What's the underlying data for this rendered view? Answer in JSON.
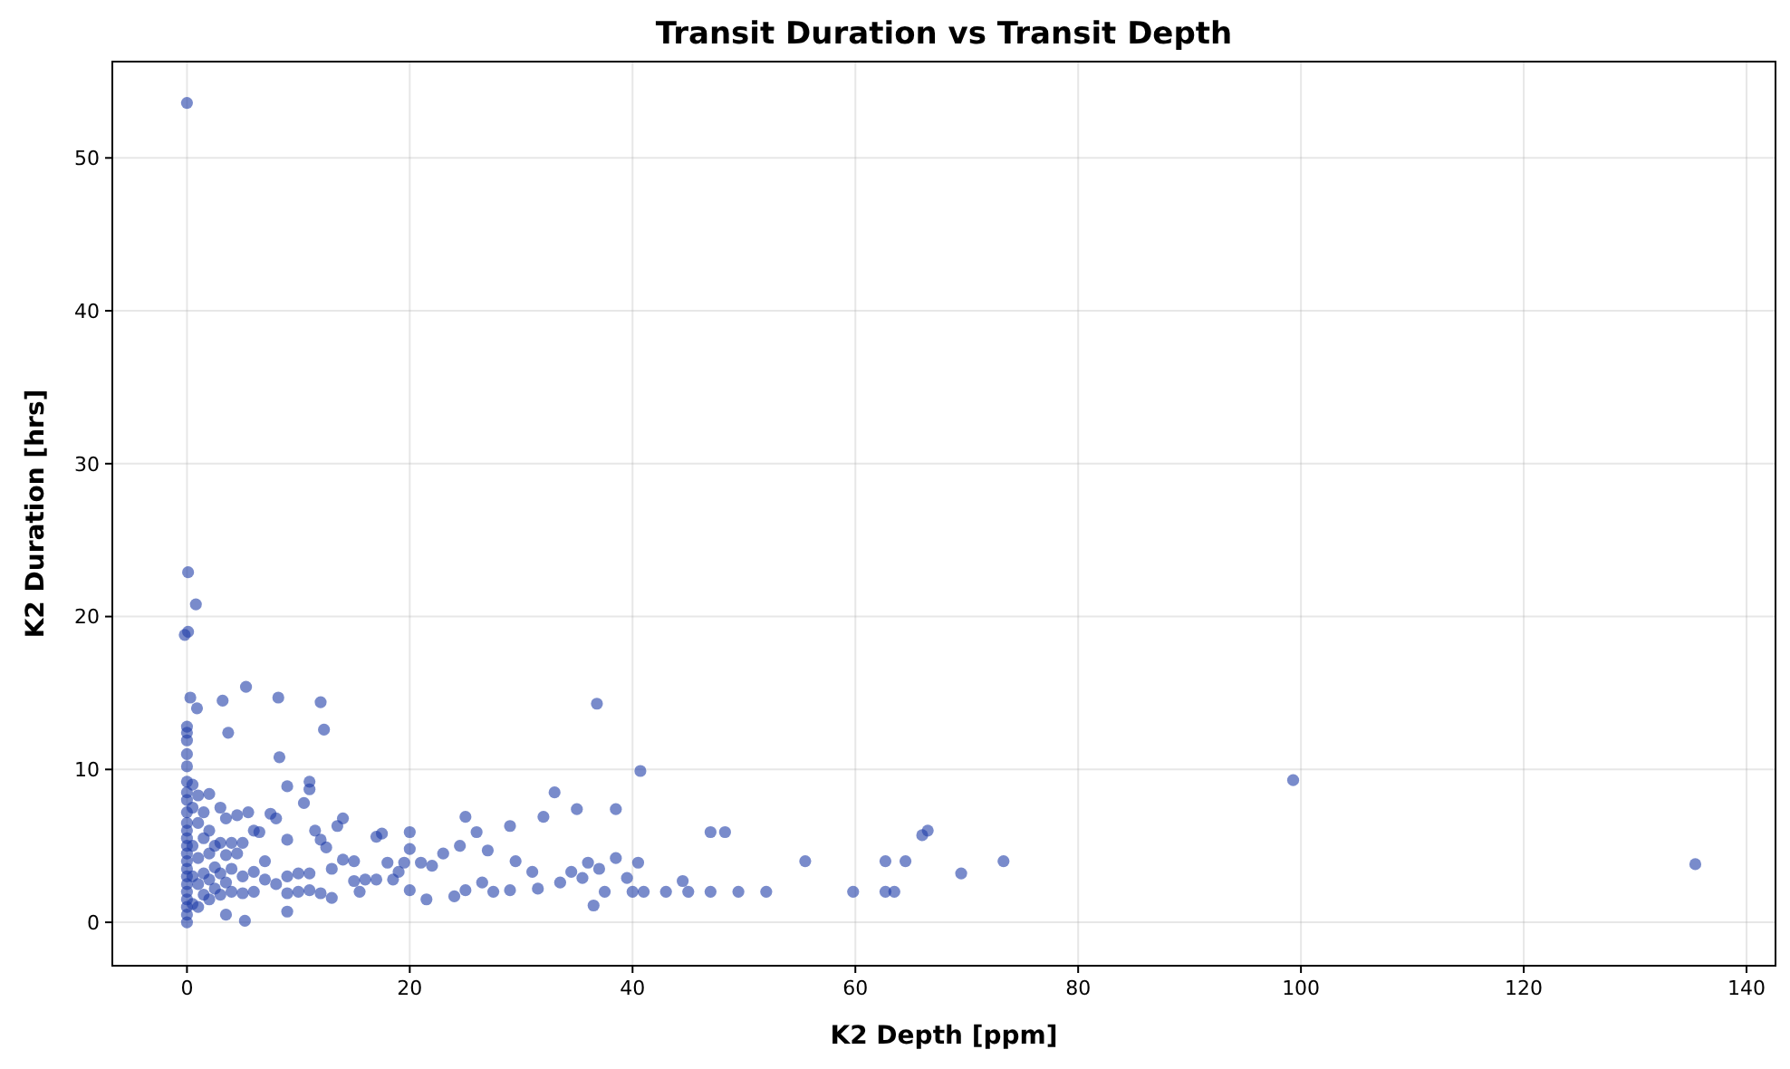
{
  "chart_data": {
    "type": "scatter",
    "title": "Transit Duration vs Transit Depth",
    "xlabel": "K2 Depth [ppm]",
    "ylabel": "K2 Duration [hrs]",
    "xlim": [
      -6.7,
      142.6
    ],
    "ylim": [
      -2.84,
      56.3
    ],
    "xticks": [
      0,
      20,
      40,
      60,
      80,
      100,
      120,
      140
    ],
    "yticks": [
      0,
      10,
      20,
      30,
      40,
      50
    ],
    "grid": true,
    "marker": "circle",
    "series": [
      {
        "color": "#1f3ea8",
        "x": [
          0,
          0.1,
          0.8,
          0.1,
          -0.2,
          0.3,
          0.9,
          3.2,
          5.3,
          8.2,
          12.0,
          12.3,
          3.7,
          8.3,
          36.8,
          40.7,
          99.3,
          135.4,
          0,
          0,
          0,
          0,
          0,
          0,
          0,
          0,
          0,
          0,
          0,
          0,
          0,
          0,
          0,
          0,
          0,
          0,
          0,
          0,
          0,
          0,
          0,
          0.5,
          0.5,
          0.5,
          0.5,
          0.5,
          1,
          1,
          1,
          1,
          1,
          1.5,
          1.5,
          1.5,
          1.5,
          2,
          2,
          2,
          2,
          2,
          2.5,
          2.5,
          2.5,
          3,
          3,
          3,
          3,
          3.5,
          3.5,
          3.5,
          3.5,
          4,
          4,
          4,
          4.5,
          4.5,
          5,
          5,
          5,
          5.2,
          5.5,
          6,
          6,
          6,
          6.5,
          7,
          7,
          7.5,
          8,
          8,
          9,
          9,
          9,
          9,
          9,
          10,
          10,
          10.5,
          11,
          11,
          11,
          11,
          11.5,
          12,
          12,
          12.5,
          13,
          13,
          13.5,
          14,
          14,
          15,
          15,
          15.5,
          16,
          17,
          17,
          17.5,
          18,
          18.5,
          19,
          19.5,
          20,
          20,
          20,
          21,
          21.5,
          22,
          23,
          24,
          24.5,
          25,
          25,
          26,
          26.5,
          27,
          27.5,
          29,
          29,
          29.5,
          31,
          31.5,
          32,
          33,
          33.5,
          34.5,
          35,
          35.5,
          36,
          36.5,
          37,
          37.5,
          38.5,
          38.5,
          39.5,
          40,
          40.5,
          41,
          43,
          44.5,
          45,
          47,
          47,
          48.3,
          49.5,
          52,
          55.5,
          59.8,
          62.7,
          62.7,
          63.5,
          64.5,
          66,
          66.5,
          69.5,
          73.3
        ],
        "values": [
          53.6,
          22.9,
          20.8,
          19.0,
          18.8,
          14.7,
          14.0,
          14.5,
          15.4,
          14.7,
          14.4,
          12.6,
          12.4,
          10.8,
          14.3,
          9.9,
          9.3,
          3.8,
          12.8,
          12.4,
          11.9,
          11.0,
          10.2,
          9.2,
          8.5,
          8.0,
          7.2,
          6.5,
          6.0,
          5.5,
          5.0,
          4.5,
          4.0,
          3.5,
          3.0,
          2.5,
          2.0,
          1.5,
          1.0,
          0.5,
          0.0,
          9.0,
          7.5,
          5,
          3,
          1.2,
          8.3,
          6.5,
          4.2,
          2.5,
          1.0,
          7.2,
          5.5,
          3.2,
          1.8,
          8.4,
          6,
          4.5,
          2.8,
          1.5,
          5,
          3.6,
          2.2,
          7.5,
          5.2,
          3.2,
          1.8,
          6.8,
          4.4,
          2.6,
          0.5,
          5.2,
          3.5,
          2,
          7,
          4.5,
          5.2,
          3,
          1.9,
          0.1,
          7.2,
          6,
          3.3,
          2,
          5.9,
          4,
          2.8,
          7.1,
          6.8,
          2.5,
          8.9,
          5.4,
          3,
          1.9,
          0.7,
          3.2,
          2,
          7.8,
          8.7,
          9.2,
          3.2,
          2.1,
          6,
          5.4,
          1.9,
          4.9,
          3.5,
          1.6,
          6.3,
          6.8,
          4.1,
          4,
          2.7,
          2,
          2.8,
          2.8,
          5.6,
          5.8,
          3.9,
          2.8,
          3.3,
          3.9,
          4.8,
          5.9,
          2.1,
          3.9,
          1.5,
          3.7,
          4.5,
          1.7,
          5,
          6.9,
          2.1,
          5.9,
          2.6,
          4.7,
          2,
          6.3,
          2.1,
          4,
          3.3,
          2.2,
          6.9,
          8.5,
          2.6,
          3.3,
          7.4,
          2.9,
          3.9,
          1.1,
          3.5,
          2,
          7.4,
          4.2,
          2.9,
          2,
          3.9,
          2,
          2,
          2.7,
          2,
          5.9,
          2,
          5.9,
          2,
          2,
          4,
          2,
          4,
          2,
          2,
          4,
          5.7,
          6,
          3.2,
          4
        ]
      }
    ]
  }
}
